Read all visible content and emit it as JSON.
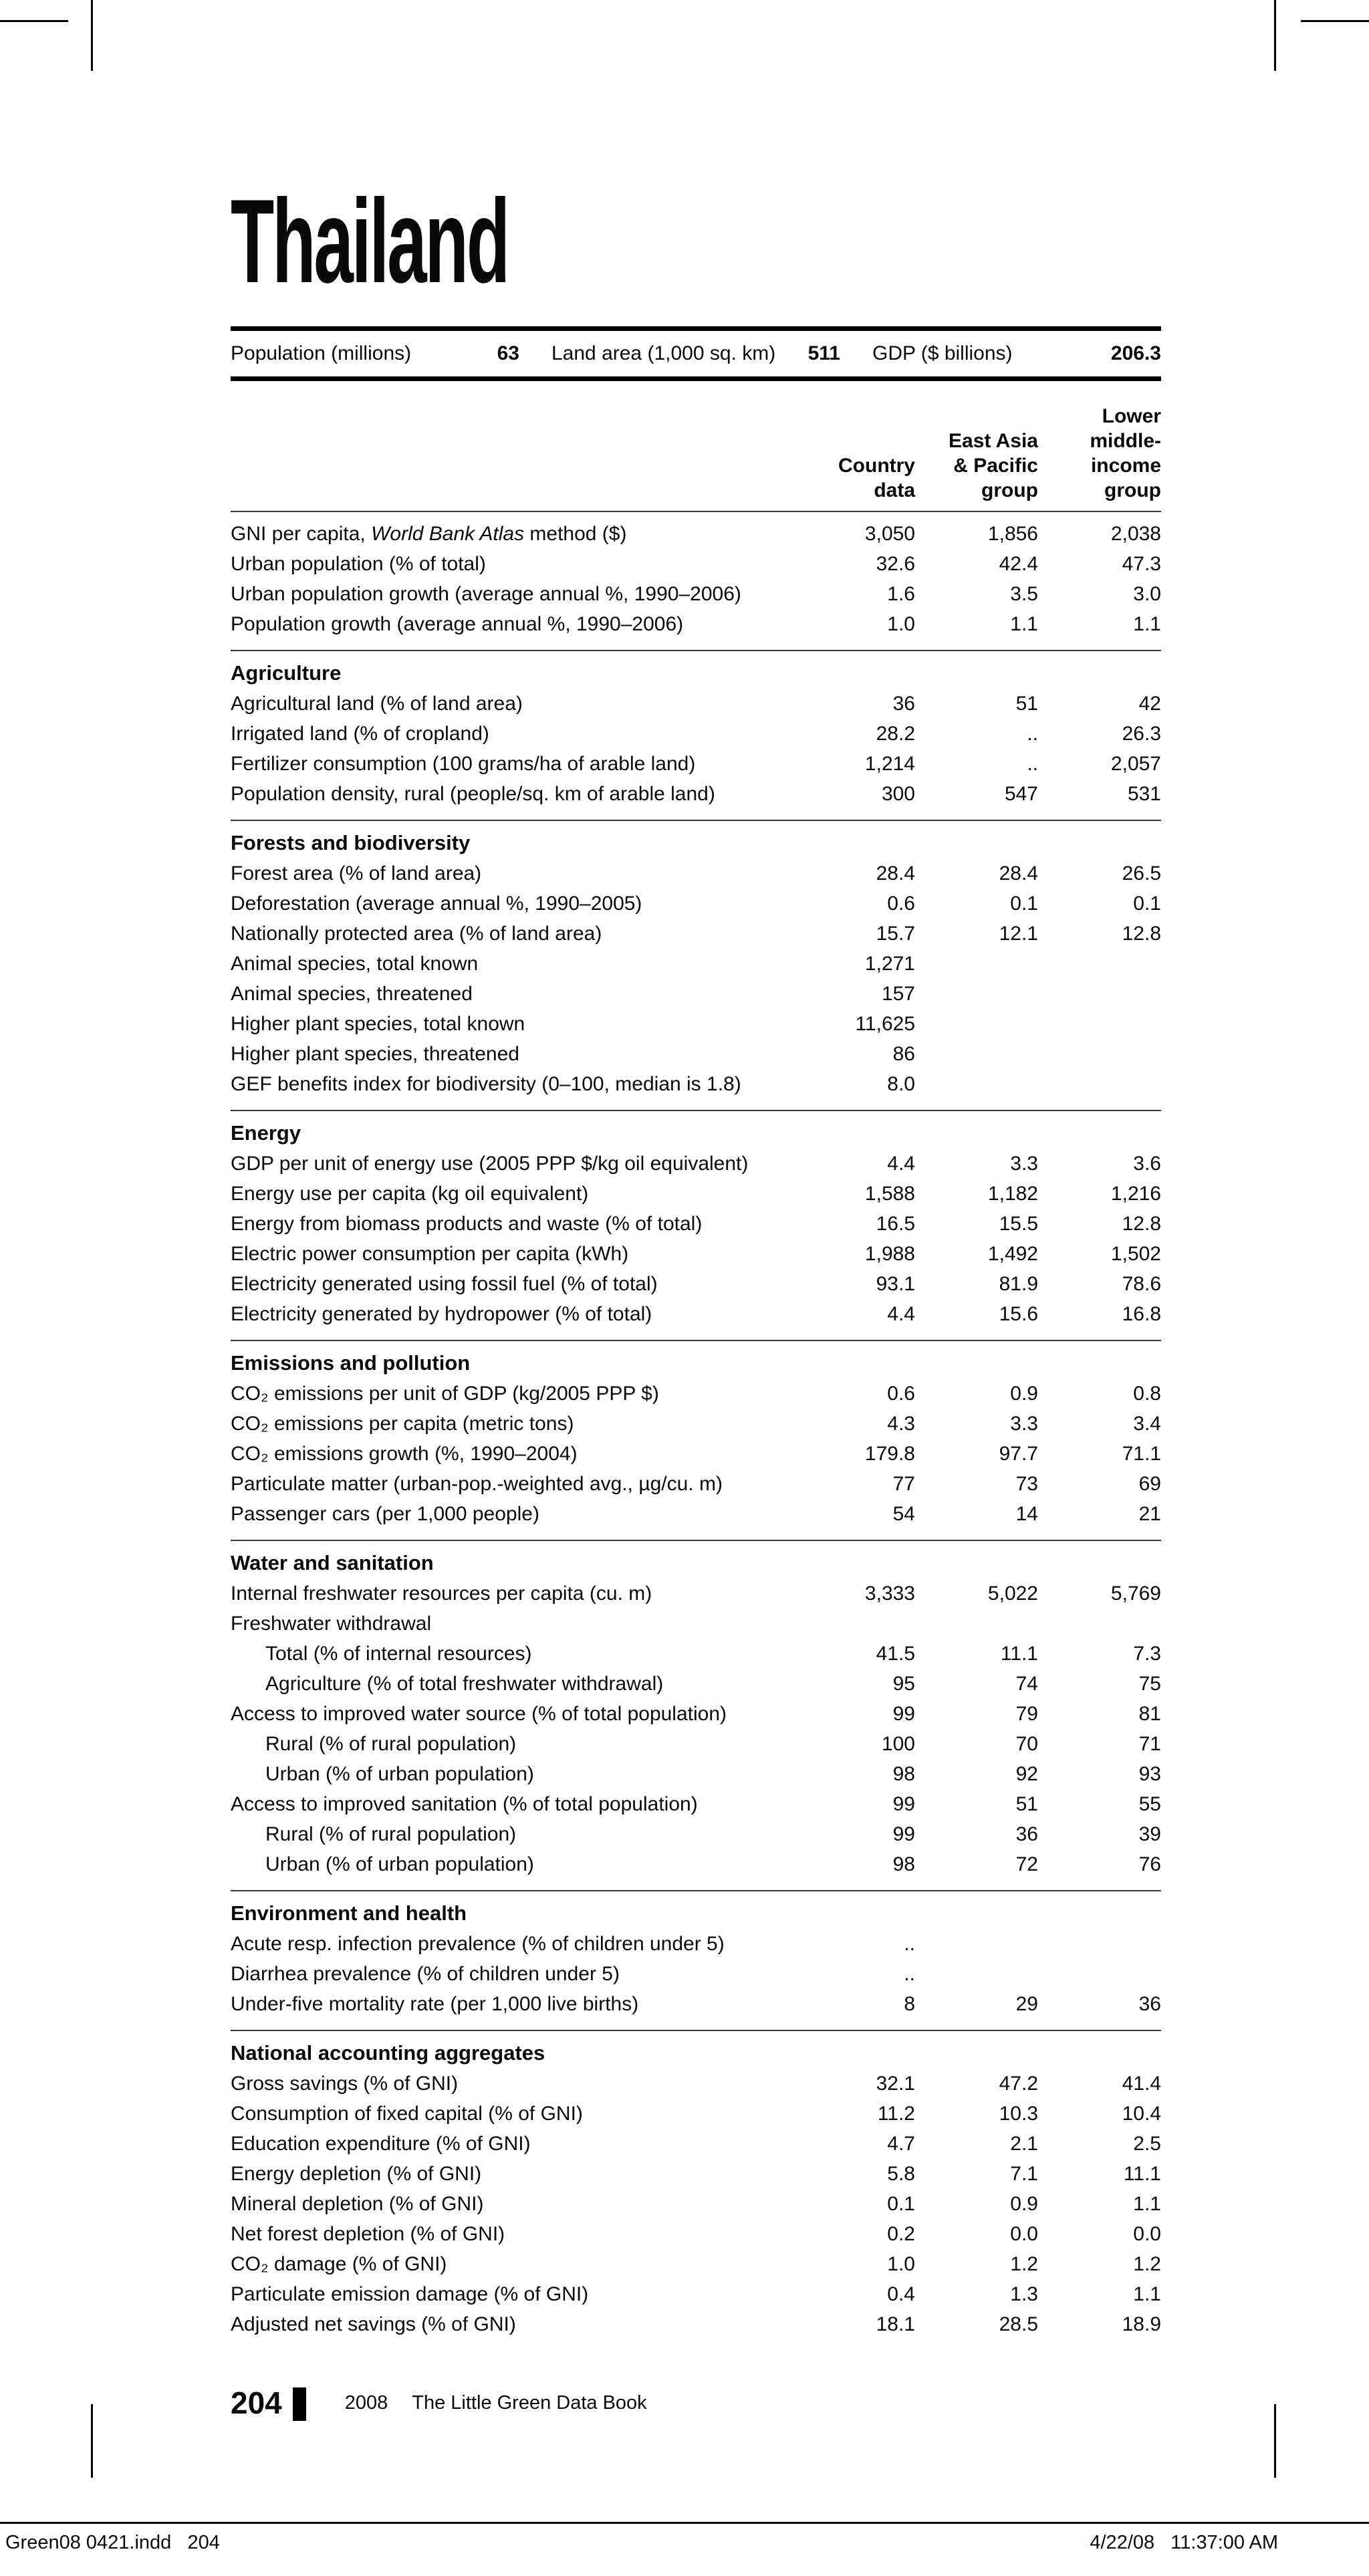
{
  "page": {
    "title": "Thailand"
  },
  "summary": [
    {
      "label": "Population (millions)",
      "value": "63"
    },
    {
      "label": "Land area (1,000 sq. km)",
      "value": "511"
    },
    {
      "label": "GDP ($ billions)",
      "value": "206.3"
    }
  ],
  "columns": [
    "Country\ndata",
    "East Asia\n& Pacific\ngroup",
    "Lower\nmiddle-\nincome\ngroup"
  ],
  "sections": [
    {
      "title": "",
      "rows": [
        {
          "label": "GNI per capita, World Bank Atlas method ($)",
          "italic": "World Bank Atlas",
          "values": [
            "3,050",
            "1,856",
            "2,038"
          ]
        },
        {
          "label": "Urban population (% of total)",
          "values": [
            "32.6",
            "42.4",
            "47.3"
          ]
        },
        {
          "label": "Urban population growth (average annual %, 1990–2006)",
          "values": [
            "1.6",
            "3.5",
            "3.0"
          ]
        },
        {
          "label": "Population growth (average annual %, 1990–2006)",
          "values": [
            "1.0",
            "1.1",
            "1.1"
          ]
        }
      ]
    },
    {
      "title": "Agriculture",
      "rows": [
        {
          "label": "Agricultural land (% of land area)",
          "values": [
            "36",
            "51",
            "42"
          ]
        },
        {
          "label": "Irrigated land (% of cropland)",
          "values": [
            "28.2",
            "..",
            "26.3"
          ]
        },
        {
          "label": "Fertilizer consumption (100 grams/ha of arable land)",
          "values": [
            "1,214",
            "..",
            "2,057"
          ]
        },
        {
          "label": "Population density, rural (people/sq. km of arable land)",
          "values": [
            "300",
            "547",
            "531"
          ]
        }
      ]
    },
    {
      "title": "Forests and biodiversity",
      "rows": [
        {
          "label": "Forest area (% of land area)",
          "values": [
            "28.4",
            "28.4",
            "26.5"
          ]
        },
        {
          "label": "Deforestation (average annual %, 1990–2005)",
          "values": [
            "0.6",
            "0.1",
            "0.1"
          ]
        },
        {
          "label": "Nationally protected area (% of land area)",
          "values": [
            "15.7",
            "12.1",
            "12.8"
          ]
        },
        {
          "label": "Animal species, total known",
          "values": [
            "1,271",
            "",
            ""
          ]
        },
        {
          "label": "Animal species, threatened",
          "values": [
            "157",
            "",
            ""
          ]
        },
        {
          "label": "Higher plant species, total known",
          "values": [
            "11,625",
            "",
            ""
          ]
        },
        {
          "label": "Higher plant species, threatened",
          "values": [
            "86",
            "",
            ""
          ]
        },
        {
          "label": "GEF benefits index for biodiversity (0–100, median is 1.8)",
          "values": [
            "8.0",
            "",
            ""
          ]
        }
      ]
    },
    {
      "title": "Energy",
      "rows": [
        {
          "label": "GDP per unit of energy use (2005 PPP $/kg oil equivalent)",
          "values": [
            "4.4",
            "3.3",
            "3.6"
          ]
        },
        {
          "label": "Energy use per capita (kg oil equivalent)",
          "values": [
            "1,588",
            "1,182",
            "1,216"
          ]
        },
        {
          "label": "Energy from biomass products and waste (% of total)",
          "values": [
            "16.5",
            "15.5",
            "12.8"
          ]
        },
        {
          "label": "Electric power consumption per capita (kWh)",
          "values": [
            "1,988",
            "1,492",
            "1,502"
          ]
        },
        {
          "label": "Electricity generated using fossil fuel (% of total)",
          "values": [
            "93.1",
            "81.9",
            "78.6"
          ]
        },
        {
          "label": "Electricity generated by hydropower (% of total)",
          "values": [
            "4.4",
            "15.6",
            "16.8"
          ]
        }
      ]
    },
    {
      "title": "Emissions and pollution",
      "rows": [
        {
          "label": "CO₂ emissions per unit of GDP (kg/2005 PPP $)",
          "values": [
            "0.6",
            "0.9",
            "0.8"
          ]
        },
        {
          "label": "CO₂ emissions per capita (metric tons)",
          "values": [
            "4.3",
            "3.3",
            "3.4"
          ]
        },
        {
          "label": "CO₂ emissions growth (%, 1990–2004)",
          "values": [
            "179.8",
            "97.7",
            "71.1"
          ]
        },
        {
          "label": "Particulate matter (urban-pop.-weighted avg., µg/cu. m)",
          "values": [
            "77",
            "73",
            "69"
          ]
        },
        {
          "label": "Passenger cars (per 1,000 people)",
          "values": [
            "54",
            "14",
            "21"
          ]
        }
      ]
    },
    {
      "title": "Water and sanitation",
      "rows": [
        {
          "label": "Internal freshwater resources per capita (cu. m)",
          "values": [
            "3,333",
            "5,022",
            "5,769"
          ]
        },
        {
          "label": "Freshwater withdrawal",
          "values": [
            "",
            "",
            ""
          ]
        },
        {
          "label": "Total (% of internal resources)",
          "indent": true,
          "values": [
            "41.5",
            "11.1",
            "7.3"
          ]
        },
        {
          "label": "Agriculture (% of total freshwater withdrawal)",
          "indent": true,
          "values": [
            "95",
            "74",
            "75"
          ]
        },
        {
          "label": "Access to improved water source (% of total population)",
          "values": [
            "99",
            "79",
            "81"
          ]
        },
        {
          "label": "Rural (% of rural population)",
          "indent": true,
          "values": [
            "100",
            "70",
            "71"
          ]
        },
        {
          "label": "Urban (% of urban population)",
          "indent": true,
          "values": [
            "98",
            "92",
            "93"
          ]
        },
        {
          "label": "Access to improved sanitation (% of total population)",
          "values": [
            "99",
            "51",
            "55"
          ]
        },
        {
          "label": "Rural (% of rural population)",
          "indent": true,
          "values": [
            "99",
            "36",
            "39"
          ]
        },
        {
          "label": "Urban (% of urban population)",
          "indent": true,
          "values": [
            "98",
            "72",
            "76"
          ]
        }
      ]
    },
    {
      "title": "Environment and health",
      "rows": [
        {
          "label": "Acute resp. infection prevalence (% of children under 5)",
          "values": [
            "..",
            "",
            ""
          ]
        },
        {
          "label": "Diarrhea prevalence (% of children under 5)",
          "values": [
            "..",
            "",
            ""
          ]
        },
        {
          "label": "Under-five mortality rate (per 1,000 live births)",
          "values": [
            "8",
            "29",
            "36"
          ]
        }
      ]
    },
    {
      "title": "National accounting aggregates",
      "rows": [
        {
          "label": "Gross savings (% of GNI)",
          "values": [
            "32.1",
            "47.2",
            "41.4"
          ]
        },
        {
          "label": "Consumption of fixed capital (% of GNI)",
          "values": [
            "11.2",
            "10.3",
            "10.4"
          ]
        },
        {
          "label": "Education expenditure (% of GNI)",
          "values": [
            "4.7",
            "2.1",
            "2.5"
          ]
        },
        {
          "label": "Energy depletion (% of GNI)",
          "values": [
            "5.8",
            "7.1",
            "11.1"
          ]
        },
        {
          "label": "Mineral depletion (% of GNI)",
          "values": [
            "0.1",
            "0.9",
            "1.1"
          ]
        },
        {
          "label": "Net forest depletion (% of GNI)",
          "values": [
            "0.2",
            "0.0",
            "0.0"
          ]
        },
        {
          "label": "CO₂ damage (% of GNI)",
          "values": [
            "1.0",
            "1.2",
            "1.2"
          ]
        },
        {
          "label": "Particulate emission damage (% of GNI)",
          "values": [
            "0.4",
            "1.3",
            "1.1"
          ]
        },
        {
          "label": "Adjusted net savings (% of GNI)",
          "values": [
            "18.1",
            "28.5",
            "18.9"
          ]
        }
      ]
    }
  ],
  "footer": {
    "page_number": "204",
    "year": "2008",
    "book_title": "The Little Green Data Book"
  },
  "slug": {
    "left": "Green08 0421.indd   204",
    "right": "4/22/08   11:37:00 AM"
  }
}
